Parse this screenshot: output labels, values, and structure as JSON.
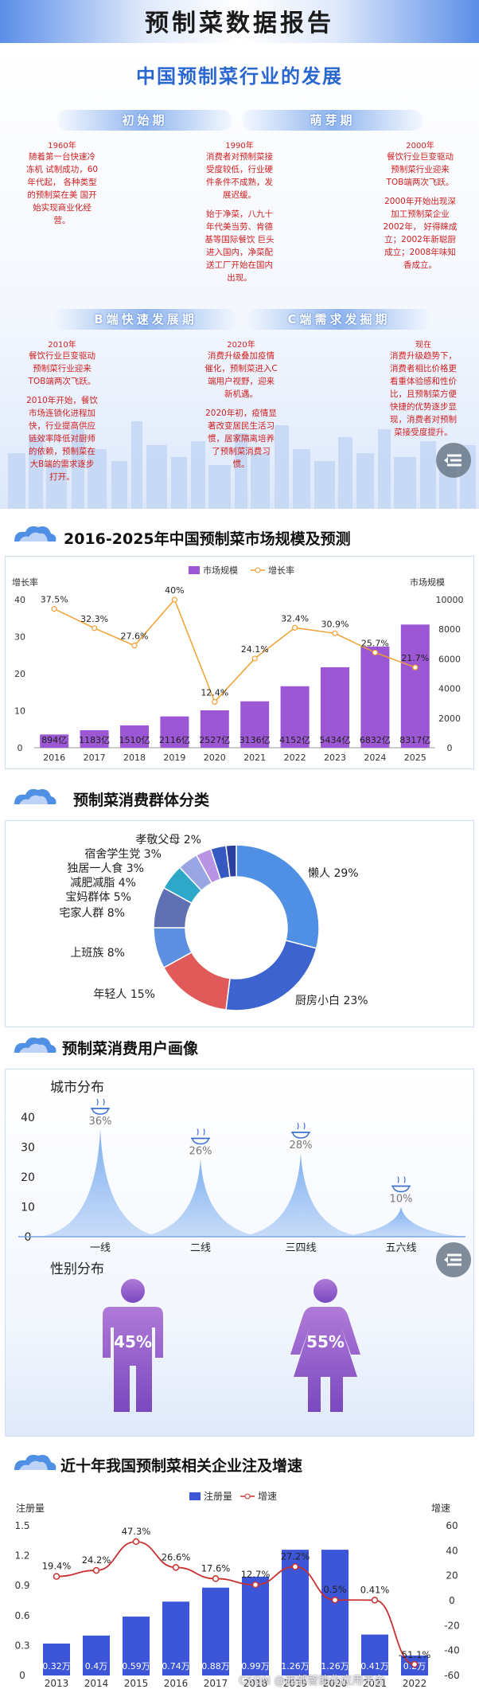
{
  "main_title": "预制菜数据报告",
  "history": {
    "title": "中国预制菜行业的发展",
    "phases": [
      "初始期",
      "萌芽期",
      "B端快速发展期",
      "C端需求发掘期"
    ],
    "entries": [
      {
        "year": "1960年",
        "text": [
          "随着第一台快速冷",
          "冻机 试制成功，60",
          "年代起， 各种类型",
          "的预制菜在美 国开",
          "始实现商业化经",
          "营。"
        ]
      },
      {
        "year": "1990年",
        "text": [
          "消费者对预制菜接",
          "受度较低，行业硬",
          "件条件不成熟，发",
          "展迟缓。",
          "",
          "始于净菜，八九十",
          "年代美当劳、肯德",
          "基等国际餐饮 巨头",
          "进入国内，净菜配",
          "送工厂开始在国内",
          "出现。"
        ]
      },
      {
        "year": "2000年",
        "text": [
          "餐饮行业巨变驱动",
          "预制菜行业迎来",
          "TOB端两次飞跃。",
          "",
          "2000年开始出现深",
          "加工预制菜企业",
          "2002年， 好得睐成",
          "立；2002年新聪厨",
          "成立；2008年味知",
          "香成立。"
        ]
      },
      {
        "year": "2010年",
        "text": [
          "餐饮行业巨变驱动",
          "预制菜行业迎来",
          "TOB端两次飞跃。",
          "",
          "2010年开始，餐饮",
          "市场连锁化进程加",
          "快，行业提高供应",
          "链效率降低对厨师",
          "的依赖，预制菜在",
          "大B端的需求逐步",
          "打开。"
        ]
      },
      {
        "year": "2020年",
        "text": [
          "消费升级叠加疫情",
          "催化，预制菜进入C",
          "端用户视野，迎来",
          "新机遇。",
          "",
          "2020年初，疫情显",
          "著改变居民生活习",
          "惯，居家隔离培养",
          "了预制菜消费习",
          "惯。"
        ]
      },
      {
        "year": "现在",
        "text": [
          "消费升级趋势下，",
          "消费者相比价格更",
          "看重体验感和性价",
          "比，且预制菜方便",
          "快捷的优势逐步显",
          "现，消费者对预制",
          "菜接受度提升。"
        ]
      }
    ]
  },
  "market": {
    "title": "2016-2025年中国预制菜市场规模及预测",
    "chart_data": {
      "type": "bar",
      "categories": [
        "2016",
        "2017",
        "2018",
        "2019",
        "2020",
        "2021",
        "2022",
        "2023",
        "2024",
        "2025"
      ],
      "series": [
        {
          "name": "市场规模",
          "type": "bar",
          "axis": "right",
          "values": [
            894,
            1183,
            1510,
            2116,
            2527,
            3136,
            4152,
            5434,
            6832,
            8317
          ],
          "labels": [
            "894亿",
            "1183亿",
            "1510亿",
            "2116亿",
            "2527亿",
            "3136亿",
            "4152亿",
            "5434亿",
            "6832亿",
            "8317亿"
          ]
        },
        {
          "name": "增长率",
          "type": "line",
          "axis": "left",
          "values": [
            37.5,
            32.3,
            27.6,
            40,
            12.4,
            24.1,
            32.4,
            30.9,
            25.7,
            21.7
          ],
          "labels": [
            "37.5%",
            "32.3%",
            "27.6%",
            "40%",
            "12.4%",
            "24.1%",
            "32.4%",
            "30.9%",
            "25.7%",
            "21.7%"
          ]
        }
      ],
      "left_axis": {
        "label": "增长率",
        "ticks": [
          "40",
          "30",
          "20",
          "10",
          "0"
        ],
        "range": [
          0,
          40
        ]
      },
      "right_axis": {
        "label": "市场规模",
        "ticks": [
          "10000",
          "8000",
          "6000",
          "4000",
          "2000",
          "0"
        ],
        "range": [
          0,
          10000
        ]
      },
      "legend": "top-center"
    }
  },
  "groups": {
    "title": "预制菜消费群体分类",
    "chart_data": {
      "type": "pie",
      "labels": [
        "懒人 29%",
        "厨房小白 23%",
        "年轻人 15%",
        "上班族 8%",
        "宅家人群 8%",
        "宝妈群体 5%",
        "减肥减脂 4%",
        "独居一人食 3%",
        "宿舍学生党 3%",
        "孝敬父母 2%"
      ],
      "values": [
        29,
        23,
        15,
        8,
        8,
        5,
        4,
        3,
        3,
        2
      ],
      "colors": [
        "#4f8fe4",
        "#3d63cf",
        "#e05a5a",
        "#5e8fe0",
        "#5e6fb2",
        "#2ea8c9",
        "#9aa6e4",
        "#b994e4",
        "#3559c0",
        "#2a3f9e"
      ]
    }
  },
  "portrait": {
    "title": "预制菜消费用户画像",
    "city": {
      "title": "城市分布",
      "chart_data": {
        "type": "area",
        "categories": [
          "一线",
          "二线",
          "三四线",
          "五六线"
        ],
        "values": [
          36,
          26,
          28,
          10
        ],
        "labels": [
          "36%",
          "26%",
          "28%",
          "10%"
        ],
        "y_ticks": [
          "40",
          "30",
          "20",
          "10",
          "0"
        ],
        "ylim": [
          0,
          40
        ]
      }
    },
    "gender": {
      "title": "性别分布",
      "male": "45%",
      "female": "55%"
    }
  },
  "companies": {
    "title": "近十年我国预制菜相关企业注及增速",
    "chart_data": {
      "type": "bar",
      "categories": [
        "2013",
        "2014",
        "2015",
        "2016",
        "2017",
        "2018",
        "2019",
        "2020",
        "2021",
        "2022"
      ],
      "series": [
        {
          "name": "注册量",
          "type": "bar",
          "axis": "left",
          "values": [
            0.32,
            0.4,
            0.59,
            0.74,
            0.88,
            0.99,
            1.26,
            1.26,
            0.41,
            0.2
          ],
          "labels": [
            "0.32万",
            "0.4万",
            "0.59万",
            "0.74万",
            "0.88万",
            "0.99万",
            "1.26万",
            "1.26万",
            "0.41万",
            "0.2万"
          ]
        },
        {
          "name": "增速",
          "type": "line",
          "axis": "right",
          "values": [
            19.4,
            24.2,
            47.3,
            26.6,
            17.6,
            12.7,
            27.2,
            0.5,
            0.41,
            -51.1
          ],
          "labels": [
            "19.4%",
            "24.2%",
            "47.3%",
            "26.6%",
            "17.6%",
            "12.7%",
            "27.2%",
            "0.5%",
            "0.41%",
            "-51.1%"
          ]
        }
      ],
      "left_axis": {
        "label": "注册量",
        "ticks": [
          "1.5",
          "1.2",
          "0.9",
          "0.6",
          "0.3",
          "0"
        ],
        "range": [
          0,
          1.5
        ]
      },
      "right_axis": {
        "label": "增速",
        "ticks": [
          "60",
          "40",
          "20",
          "0",
          "-20",
          "-40",
          "-60"
        ],
        "range": [
          -60,
          60
        ]
      },
      "legend": "top-center"
    },
    "watermark": "CSDN @西部智能化应用平台"
  },
  "colors": {
    "accent": "#2a66d0",
    "purple": "#9b57d4",
    "orange": "#f0a030",
    "blue_bar": "#3d56d8",
    "red_line": "#c83030"
  }
}
